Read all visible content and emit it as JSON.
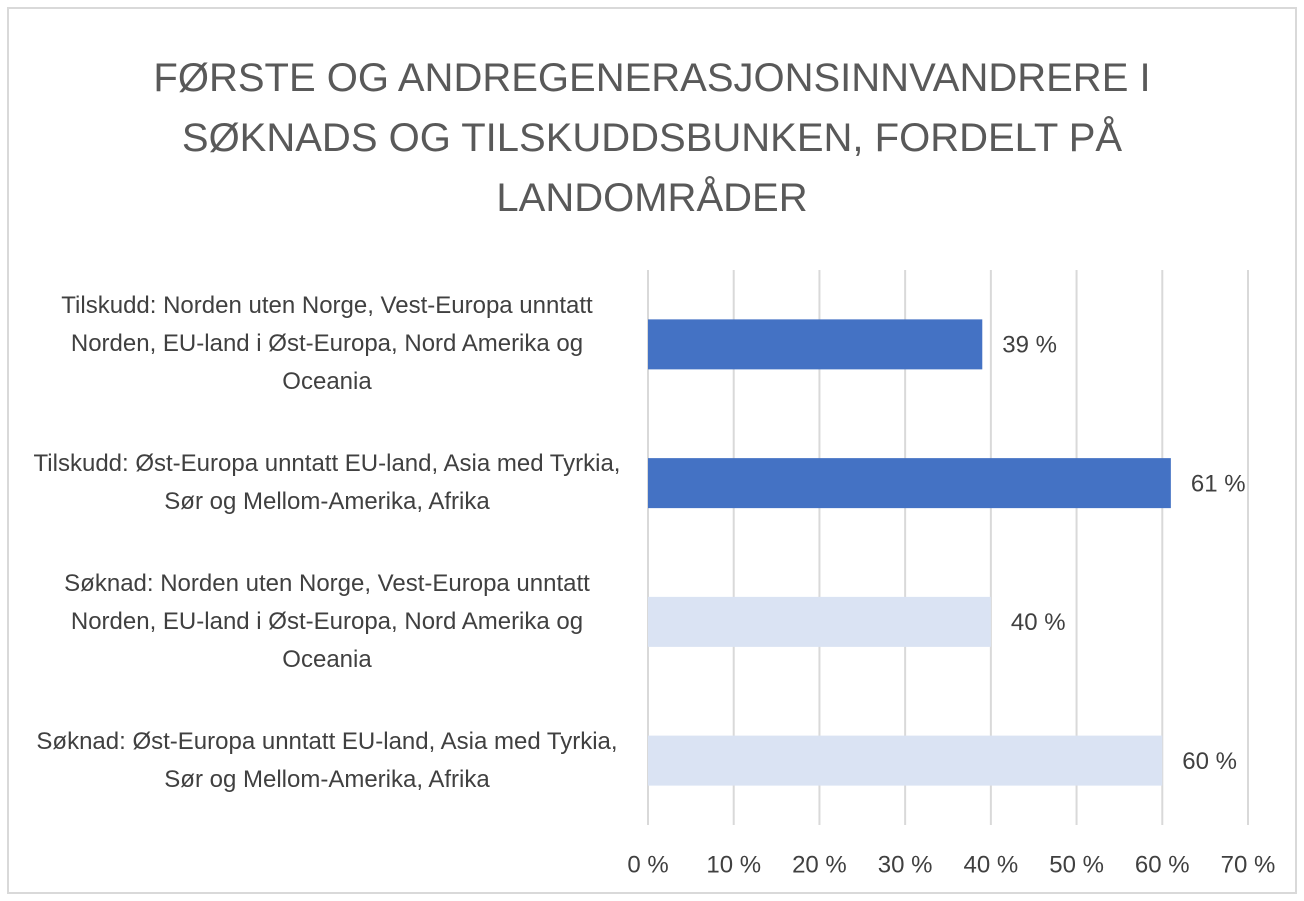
{
  "chart_data": {
    "type": "barh",
    "title": "FØRSTE OG ANDREGENERASJONSINNVANDRERE I SØKNADS OG TILSKUDDSBUNKEN, FORDELT PÅ LANDOMRÅDER",
    "categories": [
      "Tilskudd: Norden uten Norge, Vest-Europa unntatt Norden, EU-land i Øst-Europa, Nord Amerika og Oceania",
      "Tilskudd: Øst-Europa unntatt EU-land, Asia med Tyrkia, Sør og Mellom-Amerika, Afrika",
      "Søknad: Norden uten Norge, Vest-Europa unntatt Norden, EU-land i Øst-Europa, Nord Amerika og Oceania",
      "Søknad: Øst-Europa unntatt EU-land, Asia med Tyrkia, Sør og Mellom-Amerika, Afrika"
    ],
    "values": [
      39,
      61,
      40,
      60
    ],
    "value_labels": [
      "39 %",
      "61 %",
      "40 %",
      "60 %"
    ],
    "colors": [
      "#4472c4",
      "#4472c4",
      "#dae3f3",
      "#dae3f3"
    ],
    "xlim": [
      0,
      70
    ],
    "xticks": [
      {
        "value": 0,
        "label": "0 %"
      },
      {
        "value": 10,
        "label": "10 %"
      },
      {
        "value": 20,
        "label": "20 %"
      },
      {
        "value": 30,
        "label": "30 %"
      },
      {
        "value": 40,
        "label": "40 %"
      },
      {
        "value": 50,
        "label": "50 %"
      },
      {
        "value": 60,
        "label": "60 %"
      },
      {
        "value": 70,
        "label": "70 %"
      }
    ],
    "grid": true
  }
}
